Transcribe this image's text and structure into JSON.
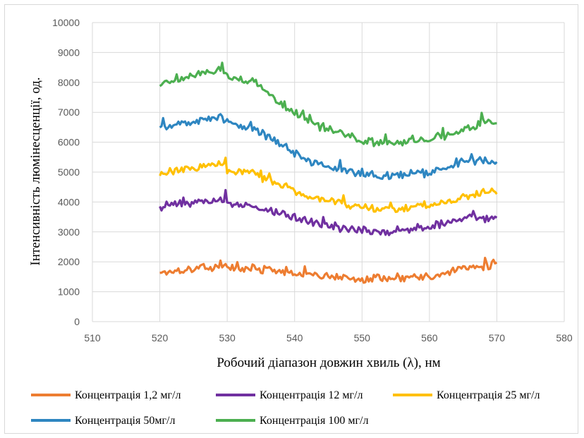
{
  "chart_data": {
    "type": "line",
    "title": "",
    "xlabel": "Робочий діапазон довжин хвиль (λ), нм",
    "ylabel": "Інтенсивність люмінесценції, од.",
    "xlim": [
      510,
      580
    ],
    "ylim": [
      0,
      10000
    ],
    "x_ticks": [
      "510",
      "520",
      "530",
      "540",
      "550",
      "560",
      "570",
      "580"
    ],
    "y_ticks": [
      "0",
      "1000",
      "2000",
      "3000",
      "4000",
      "5000",
      "6000",
      "7000",
      "8000",
      "9000",
      "10000"
    ],
    "grid": "vertical and horizontal major gridlines",
    "legend_position": "bottom",
    "x": [
      520,
      522,
      524,
      526,
      528,
      529,
      530,
      532,
      534,
      536,
      538,
      540,
      542,
      544,
      546,
      548,
      550,
      552,
      554,
      556,
      558,
      560,
      562,
      564,
      566,
      568,
      570
    ],
    "series": [
      {
        "name": "Концентрація 1,2 мг/л",
        "color": "#ED7D31",
        "values": [
          1650,
          1700,
          1750,
          1800,
          1780,
          1950,
          1800,
          1760,
          1780,
          1700,
          1650,
          1600,
          1560,
          1500,
          1480,
          1420,
          1400,
          1450,
          1400,
          1480,
          1500,
          1500,
          1600,
          1700,
          1800,
          1850,
          1900
        ]
      },
      {
        "name": "Концентрація 12 мг/л",
        "color": "#7030A0",
        "values": [
          3850,
          3900,
          3950,
          4000,
          4000,
          4150,
          4000,
          3900,
          3850,
          3700,
          3600,
          3500,
          3350,
          3250,
          3150,
          3100,
          3050,
          3050,
          3000,
          3050,
          3100,
          3150,
          3300,
          3400,
          3500,
          3500,
          3450
        ]
      },
      {
        "name": "Концентрація 25 мг/л",
        "color": "#FFC000",
        "values": [
          4950,
          5050,
          5100,
          5150,
          5200,
          5300,
          5150,
          5050,
          5000,
          4750,
          4550,
          4400,
          4200,
          4100,
          4000,
          3900,
          3850,
          3800,
          3750,
          3800,
          3850,
          3900,
          4000,
          4100,
          4250,
          4300,
          4300
        ]
      },
      {
        "name": "Концентрація 50мг/л",
        "color": "#2E86C1",
        "values": [
          6450,
          6550,
          6650,
          6700,
          6750,
          6850,
          6700,
          6550,
          6450,
          6200,
          5900,
          5650,
          5400,
          5250,
          5150,
          5000,
          4950,
          4900,
          4850,
          4900,
          4950,
          5000,
          5100,
          5250,
          5350,
          5400,
          5350
        ]
      },
      {
        "name": "Концентрація 100 мг/л",
        "color": "#4CAF50",
        "values": [
          7900,
          8050,
          8200,
          8300,
          8400,
          8500,
          8250,
          8100,
          8050,
          7650,
          7300,
          7000,
          6750,
          6550,
          6400,
          6200,
          6050,
          6000,
          5950,
          6000,
          6050,
          6100,
          6250,
          6350,
          6500,
          6600,
          6650
        ]
      }
    ]
  }
}
